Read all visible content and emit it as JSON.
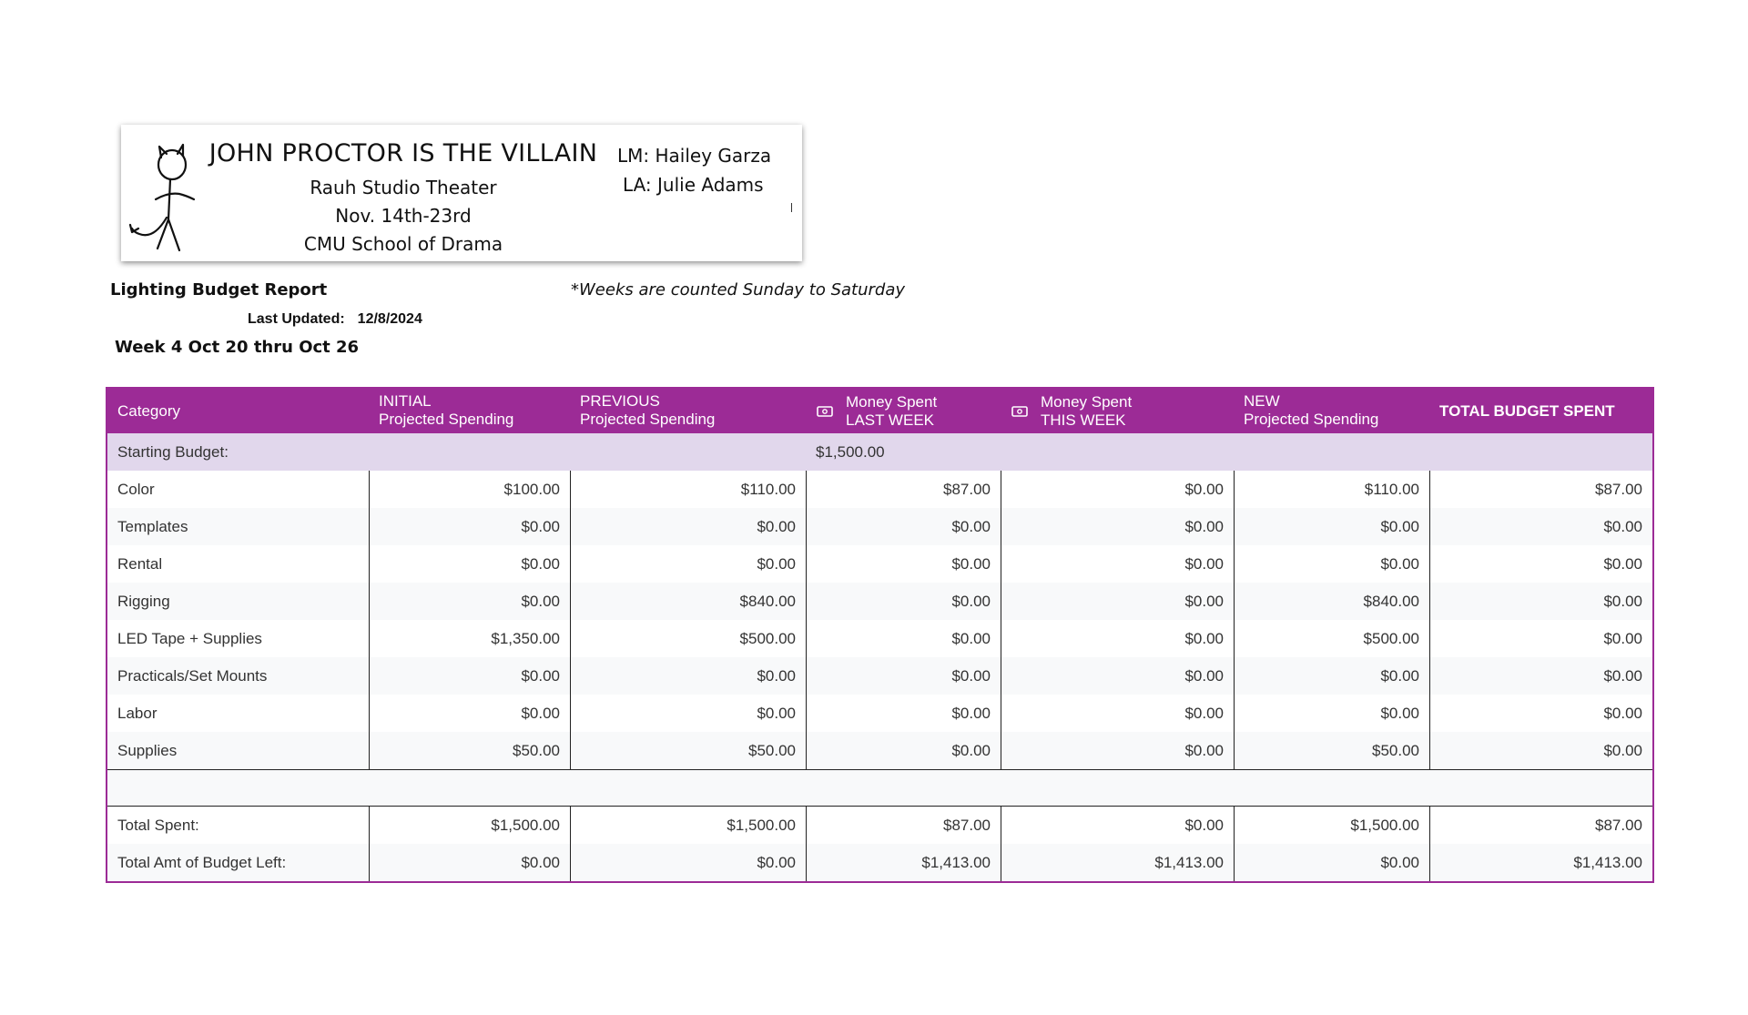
{
  "banner": {
    "title": "JOHN PROCTOR IS THE VILLAIN",
    "venue": "Rauh Studio Theater",
    "dates": "Nov. 14th-23rd",
    "school": "CMU School of Drama",
    "lm": "LM: Hailey Garza",
    "la": "LA: Julie Adams"
  },
  "report": {
    "title": "Lighting Budget Report",
    "note": "*Weeks are counted Sunday to Saturday",
    "last_updated_label": "Last Updated:",
    "last_updated_value": "12/8/2024",
    "week_range": "Week 4 Oct 20 thru Oct 26"
  },
  "table": {
    "header": {
      "category": "Category",
      "initial_1": "INITIAL",
      "initial_2": "Projected Spending",
      "previous_1": "PREVIOUS",
      "previous_2": "Projected Spending",
      "last_week_1": "Money Spent",
      "last_week_2": "LAST WEEK",
      "this_week_1": "Money Spent",
      "this_week_2": "THIS WEEK",
      "new_1": "NEW",
      "new_2": "Projected Spending",
      "total": "TOTAL BUDGET SPENT"
    },
    "starting_budget_label": "Starting Budget:",
    "starting_budget_value": "$1,500.00",
    "rows": [
      {
        "category": "Color",
        "initial": "$100.00",
        "previous": "$110.00",
        "last_week": "$87.00",
        "this_week": "$0.00",
        "new": "$110.00",
        "total": "$87.00"
      },
      {
        "category": "Templates",
        "initial": "$0.00",
        "previous": "$0.00",
        "last_week": "$0.00",
        "this_week": "$0.00",
        "new": "$0.00",
        "total": "$0.00"
      },
      {
        "category": "Rental",
        "initial": "$0.00",
        "previous": "$0.00",
        "last_week": "$0.00",
        "this_week": "$0.00",
        "new": "$0.00",
        "total": "$0.00"
      },
      {
        "category": "Rigging",
        "initial": "$0.00",
        "previous": "$840.00",
        "last_week": "$0.00",
        "this_week": "$0.00",
        "new": "$840.00",
        "total": "$0.00"
      },
      {
        "category": "LED Tape + Supplies",
        "initial": "$1,350.00",
        "previous": "$500.00",
        "last_week": "$0.00",
        "this_week": "$0.00",
        "new": "$500.00",
        "total": "$0.00"
      },
      {
        "category": "Practicals/Set Mounts",
        "initial": "$0.00",
        "previous": "$0.00",
        "last_week": "$0.00",
        "this_week": "$0.00",
        "new": "$0.00",
        "total": "$0.00"
      },
      {
        "category": "Labor",
        "initial": "$0.00",
        "previous": "$0.00",
        "last_week": "$0.00",
        "this_week": "$0.00",
        "new": "$0.00",
        "total": "$0.00"
      },
      {
        "category": "Supplies",
        "initial": "$50.00",
        "previous": "$50.00",
        "last_week": "$0.00",
        "this_week": "$0.00",
        "new": "$50.00",
        "total": "$0.00"
      }
    ],
    "totals": [
      {
        "category": "Total Spent:",
        "initial": "$1,500.00",
        "previous": "$1,500.00",
        "last_week": "$87.00",
        "this_week": "$0.00",
        "new": "$1,500.00",
        "total": "$87.00"
      },
      {
        "category": "Total Amt of Budget Left:",
        "initial": "$0.00",
        "previous": "$0.00",
        "last_week": "$1,413.00",
        "this_week": "$1,413.00",
        "new": "$0.00",
        "total": "$1,413.00"
      }
    ]
  },
  "icons": {
    "money_icon": "banknote-icon",
    "figure": "stick-figure-devil-icon"
  },
  "colors": {
    "header_bg": "#9c2b96",
    "starting_row_bg": "#e1d7ec",
    "alt_row_bg": "#f8f9fa"
  }
}
